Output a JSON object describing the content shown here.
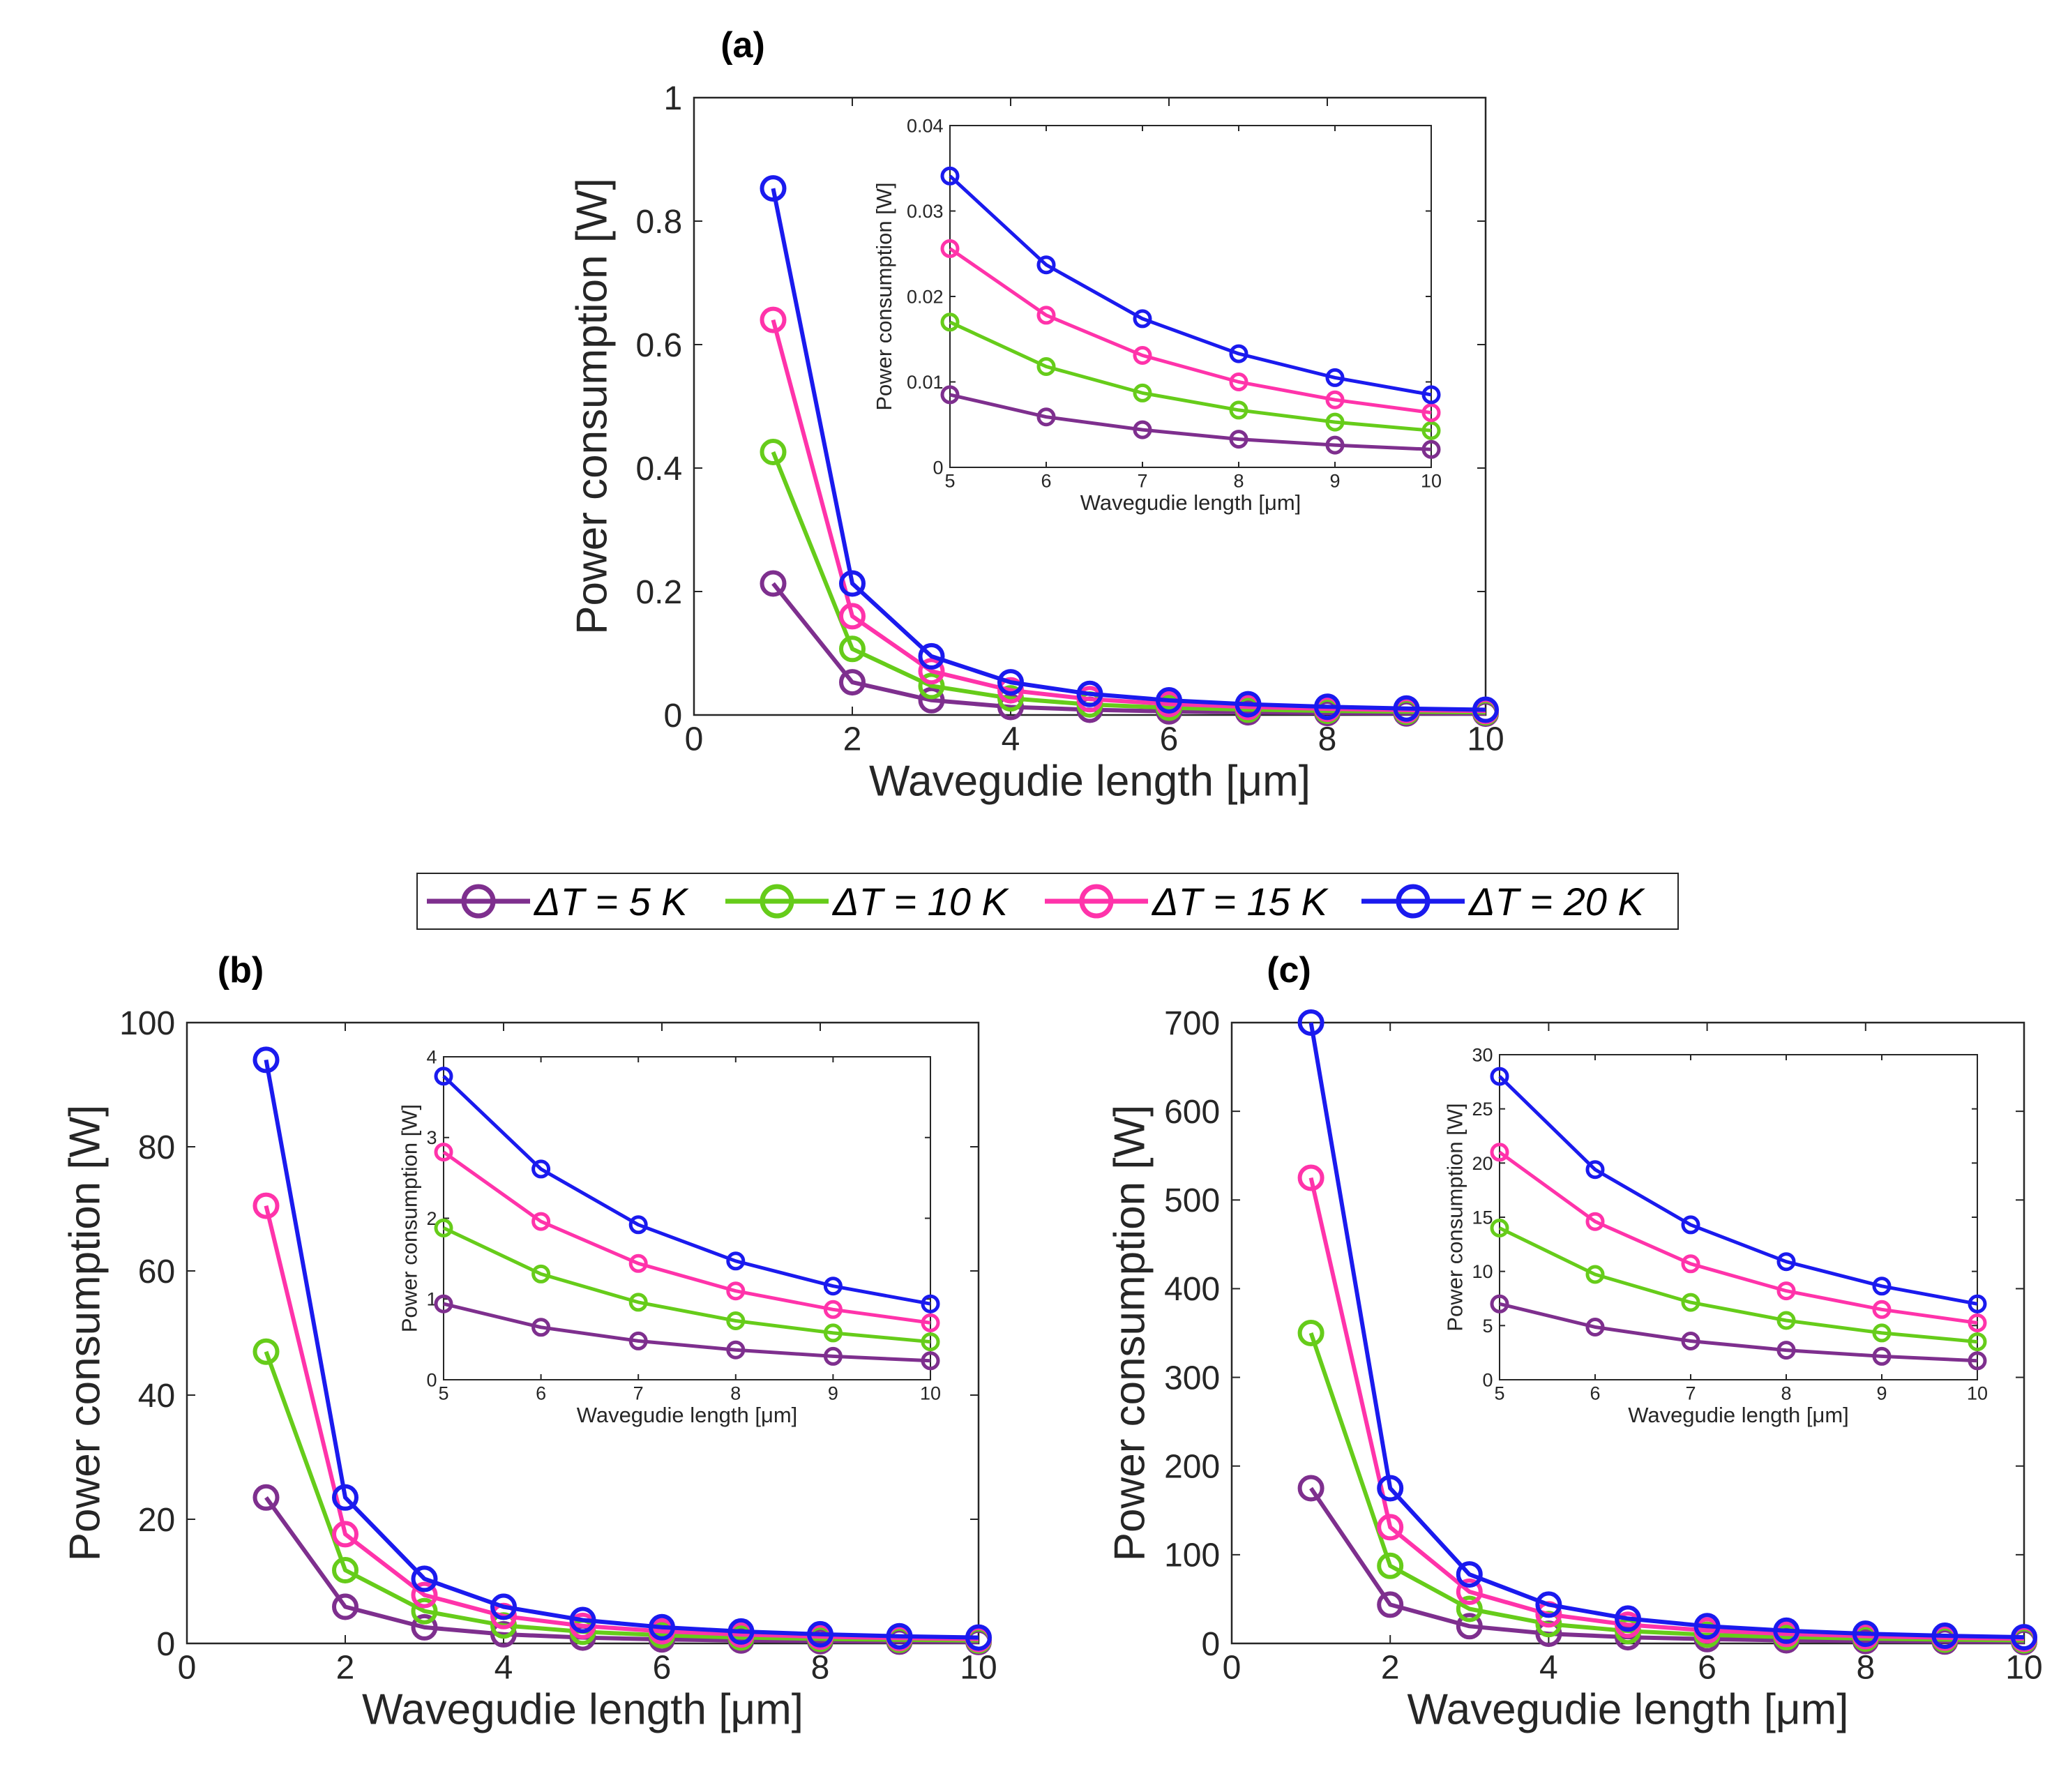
{
  "legend": {
    "entries": [
      {
        "label": "ΔT = 5 K",
        "color": "#7e2f8e"
      },
      {
        "label": "ΔT = 10 K",
        "color": "#66cc1a"
      },
      {
        "label": "ΔT = 15 K",
        "color": "#ff33aa"
      },
      {
        "label": "ΔT = 20 K",
        "color": "#1a1aee"
      }
    ]
  },
  "chart_data": [
    {
      "id": "a",
      "panel_label": "(a)",
      "type": "line",
      "xlabel": "Wavegudie length [μm]",
      "ylabel": "Power consumption [W]",
      "xlim": [
        0,
        10
      ],
      "ylim": [
        0,
        1
      ],
      "xticks": [
        "0",
        "2",
        "4",
        "6",
        "8",
        "10"
      ],
      "yticks": [
        "0",
        "0.2",
        "0.4",
        "0.6",
        "0.8",
        "1"
      ],
      "x": [
        1,
        2,
        3,
        4,
        5,
        6,
        7,
        8,
        9,
        10
      ],
      "series": [
        {
          "name": "ΔT = 5 K",
          "values": [
            0.213,
            0.053,
            0.024,
            0.013,
            0.0085,
            0.0059,
            0.0044,
            0.0033,
            0.0026,
            0.0021
          ]
        },
        {
          "name": "ΔT = 10 K",
          "values": [
            0.426,
            0.107,
            0.047,
            0.027,
            0.017,
            0.0118,
            0.0087,
            0.0067,
            0.0053,
            0.0043
          ]
        },
        {
          "name": "ΔT = 15 K",
          "values": [
            0.64,
            0.16,
            0.071,
            0.04,
            0.0256,
            0.0178,
            0.0131,
            0.01,
            0.0079,
            0.0064
          ]
        },
        {
          "name": "ΔT = 20 K",
          "values": [
            0.853,
            0.213,
            0.095,
            0.053,
            0.0341,
            0.0237,
            0.0174,
            0.0133,
            0.0105,
            0.0085
          ]
        }
      ],
      "inset": {
        "xlabel": "Wavegudie length [μm]",
        "ylabel": "Power consumption [W]",
        "xlim": [
          5,
          10
        ],
        "ylim": [
          0,
          0.04
        ],
        "xticks": [
          "5",
          "6",
          "7",
          "8",
          "9",
          "10"
        ],
        "yticks": [
          "0",
          "0.01",
          "0.02",
          "0.03",
          "0.04"
        ]
      }
    },
    {
      "id": "b",
      "panel_label": "(b)",
      "type": "line",
      "xlabel": "Wavegudie length [μm]",
      "ylabel": "Power consumption [W]",
      "xlim": [
        0,
        10
      ],
      "ylim": [
        0,
        100
      ],
      "xticks": [
        "0",
        "2",
        "4",
        "6",
        "8",
        "10"
      ],
      "yticks": [
        "0",
        "20",
        "40",
        "60",
        "80",
        "100"
      ],
      "x": [
        1,
        2,
        3,
        4,
        5,
        6,
        7,
        8,
        9,
        10
      ],
      "series": [
        {
          "name": "ΔT = 5 K",
          "values": [
            23.5,
            5.9,
            2.6,
            1.47,
            0.94,
            0.65,
            0.48,
            0.37,
            0.29,
            0.235
          ]
        },
        {
          "name": "ΔT = 10 K",
          "values": [
            47,
            11.8,
            5.2,
            2.9,
            1.88,
            1.31,
            0.96,
            0.73,
            0.58,
            0.47
          ]
        },
        {
          "name": "ΔT = 15 K",
          "values": [
            70.5,
            17.6,
            7.8,
            4.4,
            2.82,
            1.96,
            1.44,
            1.1,
            0.87,
            0.705
          ]
        },
        {
          "name": "ΔT = 20 K",
          "values": [
            94,
            23.5,
            10.4,
            5.9,
            3.76,
            2.61,
            1.92,
            1.47,
            1.16,
            0.94
          ]
        }
      ],
      "inset": {
        "xlabel": "Wavegudie length [μm]",
        "ylabel": "Power consumption [W]",
        "xlim": [
          5,
          10
        ],
        "ylim": [
          0,
          4
        ],
        "xticks": [
          "5",
          "6",
          "7",
          "8",
          "9",
          "10"
        ],
        "yticks": [
          "0",
          "1",
          "2",
          "3",
          "4"
        ]
      }
    },
    {
      "id": "c",
      "panel_label": "(c)",
      "type": "line",
      "xlabel": "Wavegudie length [μm]",
      "ylabel": "Power consumption [W]",
      "xlim": [
        0,
        10
      ],
      "ylim": [
        0,
        700
      ],
      "xticks": [
        "0",
        "2",
        "4",
        "6",
        "8",
        "10"
      ],
      "yticks": [
        "0",
        "100",
        "200",
        "300",
        "400",
        "500",
        "600",
        "700"
      ],
      "x": [
        1,
        2,
        3,
        4,
        5,
        6,
        7,
        8,
        9,
        10
      ],
      "series": [
        {
          "name": "ΔT = 5 K",
          "values": [
            175,
            43.7,
            19.4,
            10.9,
            7.0,
            4.86,
            3.57,
            2.73,
            2.16,
            1.75
          ]
        },
        {
          "name": "ΔT = 10 K",
          "values": [
            350,
            87.5,
            38.9,
            21.9,
            14.0,
            9.72,
            7.14,
            5.47,
            4.32,
            3.5
          ]
        },
        {
          "name": "ΔT = 15 K",
          "values": [
            525,
            131,
            58.3,
            32.8,
            21.0,
            14.6,
            10.7,
            8.2,
            6.48,
            5.25
          ]
        },
        {
          "name": "ΔT = 20 K",
          "values": [
            700,
            175,
            77.8,
            43.7,
            28.0,
            19.4,
            14.3,
            10.9,
            8.64,
            7.0
          ]
        }
      ],
      "inset": {
        "xlabel": "Wavegudie length [μm]",
        "ylabel": "Power consumption [W]",
        "xlim": [
          5,
          10
        ],
        "ylim": [
          0,
          30
        ],
        "xticks": [
          "5",
          "6",
          "7",
          "8",
          "9",
          "10"
        ],
        "yticks": [
          "0",
          "5",
          "10",
          "15",
          "20",
          "25",
          "30"
        ]
      }
    }
  ]
}
